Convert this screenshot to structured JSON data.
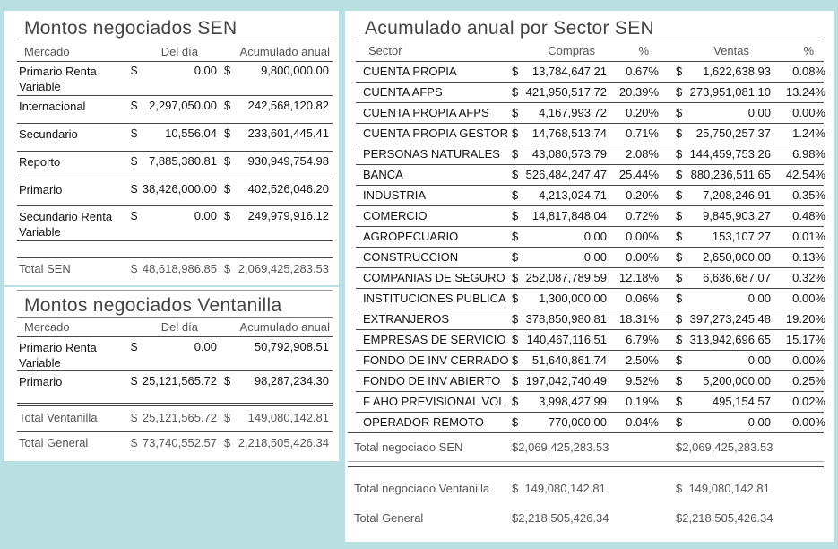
{
  "montos_sen": {
    "title": "Montos negociados SEN",
    "headers": {
      "mercado": "Mercado",
      "dia": "Del día",
      "acum": "Acumulado anual"
    },
    "rows": [
      {
        "mercado": "Primario Renta Variable",
        "dia_cur": "$",
        "dia": "0.00",
        "acum_cur": "$",
        "acum": "9,800,000.00"
      },
      {
        "mercado": "Internacional",
        "dia_cur": "$",
        "dia": "2,297,050.00",
        "acum_cur": "$",
        "acum": "242,568,120.82"
      },
      {
        "mercado": "Secundario",
        "dia_cur": "$",
        "dia": "10,556.04",
        "acum_cur": "$",
        "acum": "233,601,445.41"
      },
      {
        "mercado": "Reporto",
        "dia_cur": "$",
        "dia": "7,885,380.81",
        "acum_cur": "$",
        "acum": "930,949,754.98"
      },
      {
        "mercado": "Primario",
        "dia_cur": "$",
        "dia": "38,426,000.00",
        "acum_cur": "$",
        "acum": "402,526,046.20"
      },
      {
        "mercado": "Secundario Renta Variable",
        "dia_cur": "$",
        "dia": "0.00",
        "acum_cur": "$",
        "acum": "249,979,916.12"
      }
    ],
    "total": {
      "label": "Total SEN",
      "dia_cur": "$",
      "dia": "48,618,986.85",
      "acum_cur": "$",
      "acum": "2,069,425,283.53"
    }
  },
  "montos_ventanilla": {
    "title": "Montos negociados Ventanilla",
    "headers": {
      "mercado": "Mercado",
      "dia": "Del día",
      "acum": "Acumulado anual"
    },
    "rows": [
      {
        "mercado": "Primario Renta Variable",
        "dia_cur": "$",
        "dia": "0.00",
        "acum_cur": "",
        "acum": "50,792,908.51"
      },
      {
        "mercado": "Primario",
        "dia_cur": "$",
        "dia": "25,121,565.72",
        "acum_cur": "$",
        "acum": "98,287,234.30"
      }
    ],
    "total": {
      "label": "Total Ventanilla",
      "dia_cur": "$",
      "dia": "25,121,565.72",
      "acum_cur": "$",
      "acum": "149,080,142.81"
    },
    "general": {
      "label": "Total General",
      "dia_cur": "$",
      "dia": "73,740,552.57",
      "acum_cur": "$",
      "acum": "2,218,505,426.34"
    }
  },
  "acumulado_sector": {
    "title": "Acumulado anual por Sector SEN",
    "headers": {
      "sector": "Sector",
      "compras": "Compras",
      "pct1": "%",
      "ventas": "Ventas",
      "pct2": "%"
    },
    "rows": [
      {
        "sector": "CUENTA PROPIA",
        "cc": "$",
        "compras": "13,784,647.21",
        "pc": "0.67%",
        "vc": "$",
        "ventas": "1,622,638.93",
        "pv": "0.08%"
      },
      {
        "sector": "CUENTA AFPS",
        "cc": "$",
        "compras": "421,950,517.72",
        "pc": "20.39%",
        "vc": "$",
        "ventas": "273,951,081.10",
        "pv": "13.24%"
      },
      {
        "sector": "CUENTA PROPIA AFPS",
        "cc": "$",
        "compras": "4,167,993.72",
        "pc": "0.20%",
        "vc": "$",
        "ventas": "0.00",
        "pv": "0.00%"
      },
      {
        "sector": "CUENTA PROPIA GESTOR",
        "cc": "$",
        "compras": "14,768,513.74",
        "pc": "0.71%",
        "vc": "$",
        "ventas": "25,750,257.37",
        "pv": "1.24%"
      },
      {
        "sector": "PERSONAS NATURALES",
        "cc": "$",
        "compras": "43,080,573.79",
        "pc": "2.08%",
        "vc": "$",
        "ventas": "144,459,753.26",
        "pv": "6.98%"
      },
      {
        "sector": "BANCA",
        "cc": "$",
        "compras": "526,484,247.47",
        "pc": "25.44%",
        "vc": "$",
        "ventas": "880,236,511.65",
        "pv": "42.54%"
      },
      {
        "sector": "INDUSTRIA",
        "cc": "$",
        "compras": "4,213,024.71",
        "pc": "0.20%",
        "vc": "$",
        "ventas": "7,208,246.91",
        "pv": "0.35%"
      },
      {
        "sector": "COMERCIO",
        "cc": "$",
        "compras": "14,817,848.04",
        "pc": "0.72%",
        "vc": "$",
        "ventas": "9,845,903.27",
        "pv": "0.48%"
      },
      {
        "sector": "AGROPECUARIO",
        "cc": "$",
        "compras": "0.00",
        "pc": "0.00%",
        "vc": "$",
        "ventas": "153,107.27",
        "pv": "0.01%"
      },
      {
        "sector": "CONSTRUCCION",
        "cc": "$",
        "compras": "0.00",
        "pc": "0.00%",
        "vc": "$",
        "ventas": "2,650,000.00",
        "pv": "0.13%"
      },
      {
        "sector": "COMPANIAS DE SEGURO",
        "cc": "$",
        "compras": "252,087,789.59",
        "pc": "12.18%",
        "vc": "$",
        "ventas": "6,636,687.07",
        "pv": "0.32%"
      },
      {
        "sector": "INSTITUCIONES PUBLICA",
        "cc": "$",
        "compras": "1,300,000.00",
        "pc": "0.06%",
        "vc": "$",
        "ventas": "0.00",
        "pv": "0.00%"
      },
      {
        "sector": "EXTRANJEROS",
        "cc": "$",
        "compras": "378,850,980.81",
        "pc": "18.31%",
        "vc": "$",
        "ventas": "397,273,245.48",
        "pv": "19.20%"
      },
      {
        "sector": "EMPRESAS DE SERVICIO",
        "cc": "$",
        "compras": "140,467,116.51",
        "pc": "6.79%",
        "vc": "$",
        "ventas": "313,942,696.65",
        "pv": "15.17%"
      },
      {
        "sector": "FONDO DE INV CERRADO",
        "cc": "$",
        "compras": "51,640,861.74",
        "pc": "2.50%",
        "vc": "$",
        "ventas": "0.00",
        "pv": "0.00%"
      },
      {
        "sector": "FONDO DE INV ABIERTO",
        "cc": "$",
        "compras": "197,042,740.49",
        "pc": "9.52%",
        "vc": "$",
        "ventas": "5,200,000.00",
        "pv": "0.25%"
      },
      {
        "sector": "F AHO PREVISIONAL VOL",
        "cc": "$",
        "compras": "3,998,427.99",
        "pc": "0.19%",
        "vc": "$",
        "ventas": "495,154.57",
        "pv": "0.02%"
      },
      {
        "sector": "OPERADOR REMOTO",
        "cc": "$",
        "compras": "770,000.00",
        "pc": "0.04%",
        "vc": "$",
        "ventas": "0.00",
        "pv": "0.00%"
      }
    ],
    "totals": [
      {
        "label": "Total negociado SEN",
        "compras": "$2,069,425,283.53",
        "ventas": "$2,069,425,283.53"
      },
      {
        "label": "Total negociado Ventanilla",
        "compras": "$  149,080,142.81",
        "ventas": "$  149,080,142.81"
      },
      {
        "label": "Total General",
        "compras": "$2,218,505,426.34",
        "ventas": "$2,218,505,426.34"
      }
    ]
  }
}
